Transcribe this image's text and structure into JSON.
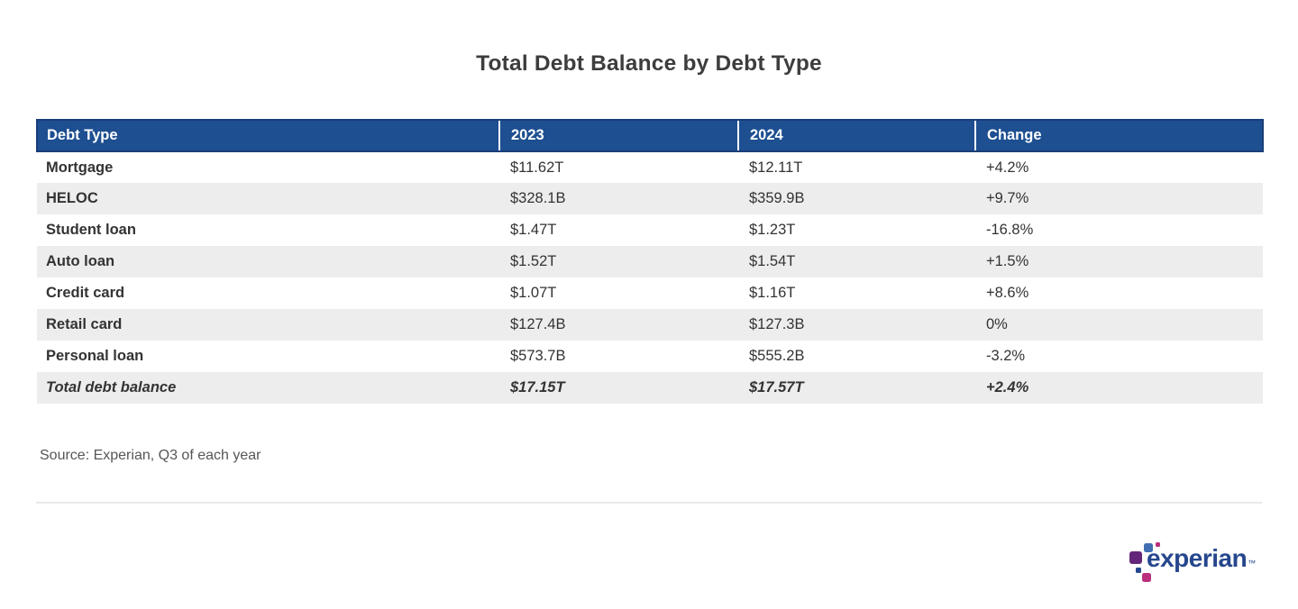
{
  "title": "Total Debt Balance by Debt Type",
  "chart_data": {
    "type": "table",
    "title": "Total Debt Balance by Debt Type",
    "columns": [
      "Debt Type",
      "2023",
      "2024",
      "Change"
    ],
    "rows": [
      [
        "Mortgage",
        "$11.62T",
        "$12.11T",
        "+4.2%"
      ],
      [
        "HELOC",
        "$328.1B",
        "$359.9B",
        "+9.7%"
      ],
      [
        "Student loan",
        "$1.47T",
        "$1.23T",
        "-16.8%"
      ],
      [
        "Auto loan",
        "$1.52T",
        "$1.54T",
        "+1.5%"
      ],
      [
        "Credit card",
        "$1.07T",
        "$1.16T",
        "+8.6%"
      ],
      [
        "Retail card",
        "$127.4B",
        "$127.3B",
        "0%"
      ],
      [
        "Personal loan",
        "$573.7B",
        "$555.2B",
        "-3.2%"
      ],
      [
        "Total debt balance",
        "$17.15T",
        "$17.57T",
        "+2.4%"
      ]
    ],
    "total_row_index": 7,
    "layout": {
      "striped": true,
      "stripe_on": "even-rows",
      "header_position": "top"
    }
  },
  "source": "Source: Experian, Q3 of each year",
  "logo": {
    "brand": "experian",
    "trademark": "™"
  },
  "colors": {
    "header_bg": "#1d4f91",
    "header_border": "#1a3e78",
    "header_text": "#ffffff",
    "row_alt_bg": "#ededed",
    "title_text": "#3d3d3d",
    "body_text": "#333333",
    "source_text": "#565656",
    "divider": "#e9e9e9",
    "logo_text_blue": "#26478d",
    "logo_light_blue": "#406eb3",
    "logo_purple": "#632678",
    "logo_magenta": "#ba2f7d"
  }
}
